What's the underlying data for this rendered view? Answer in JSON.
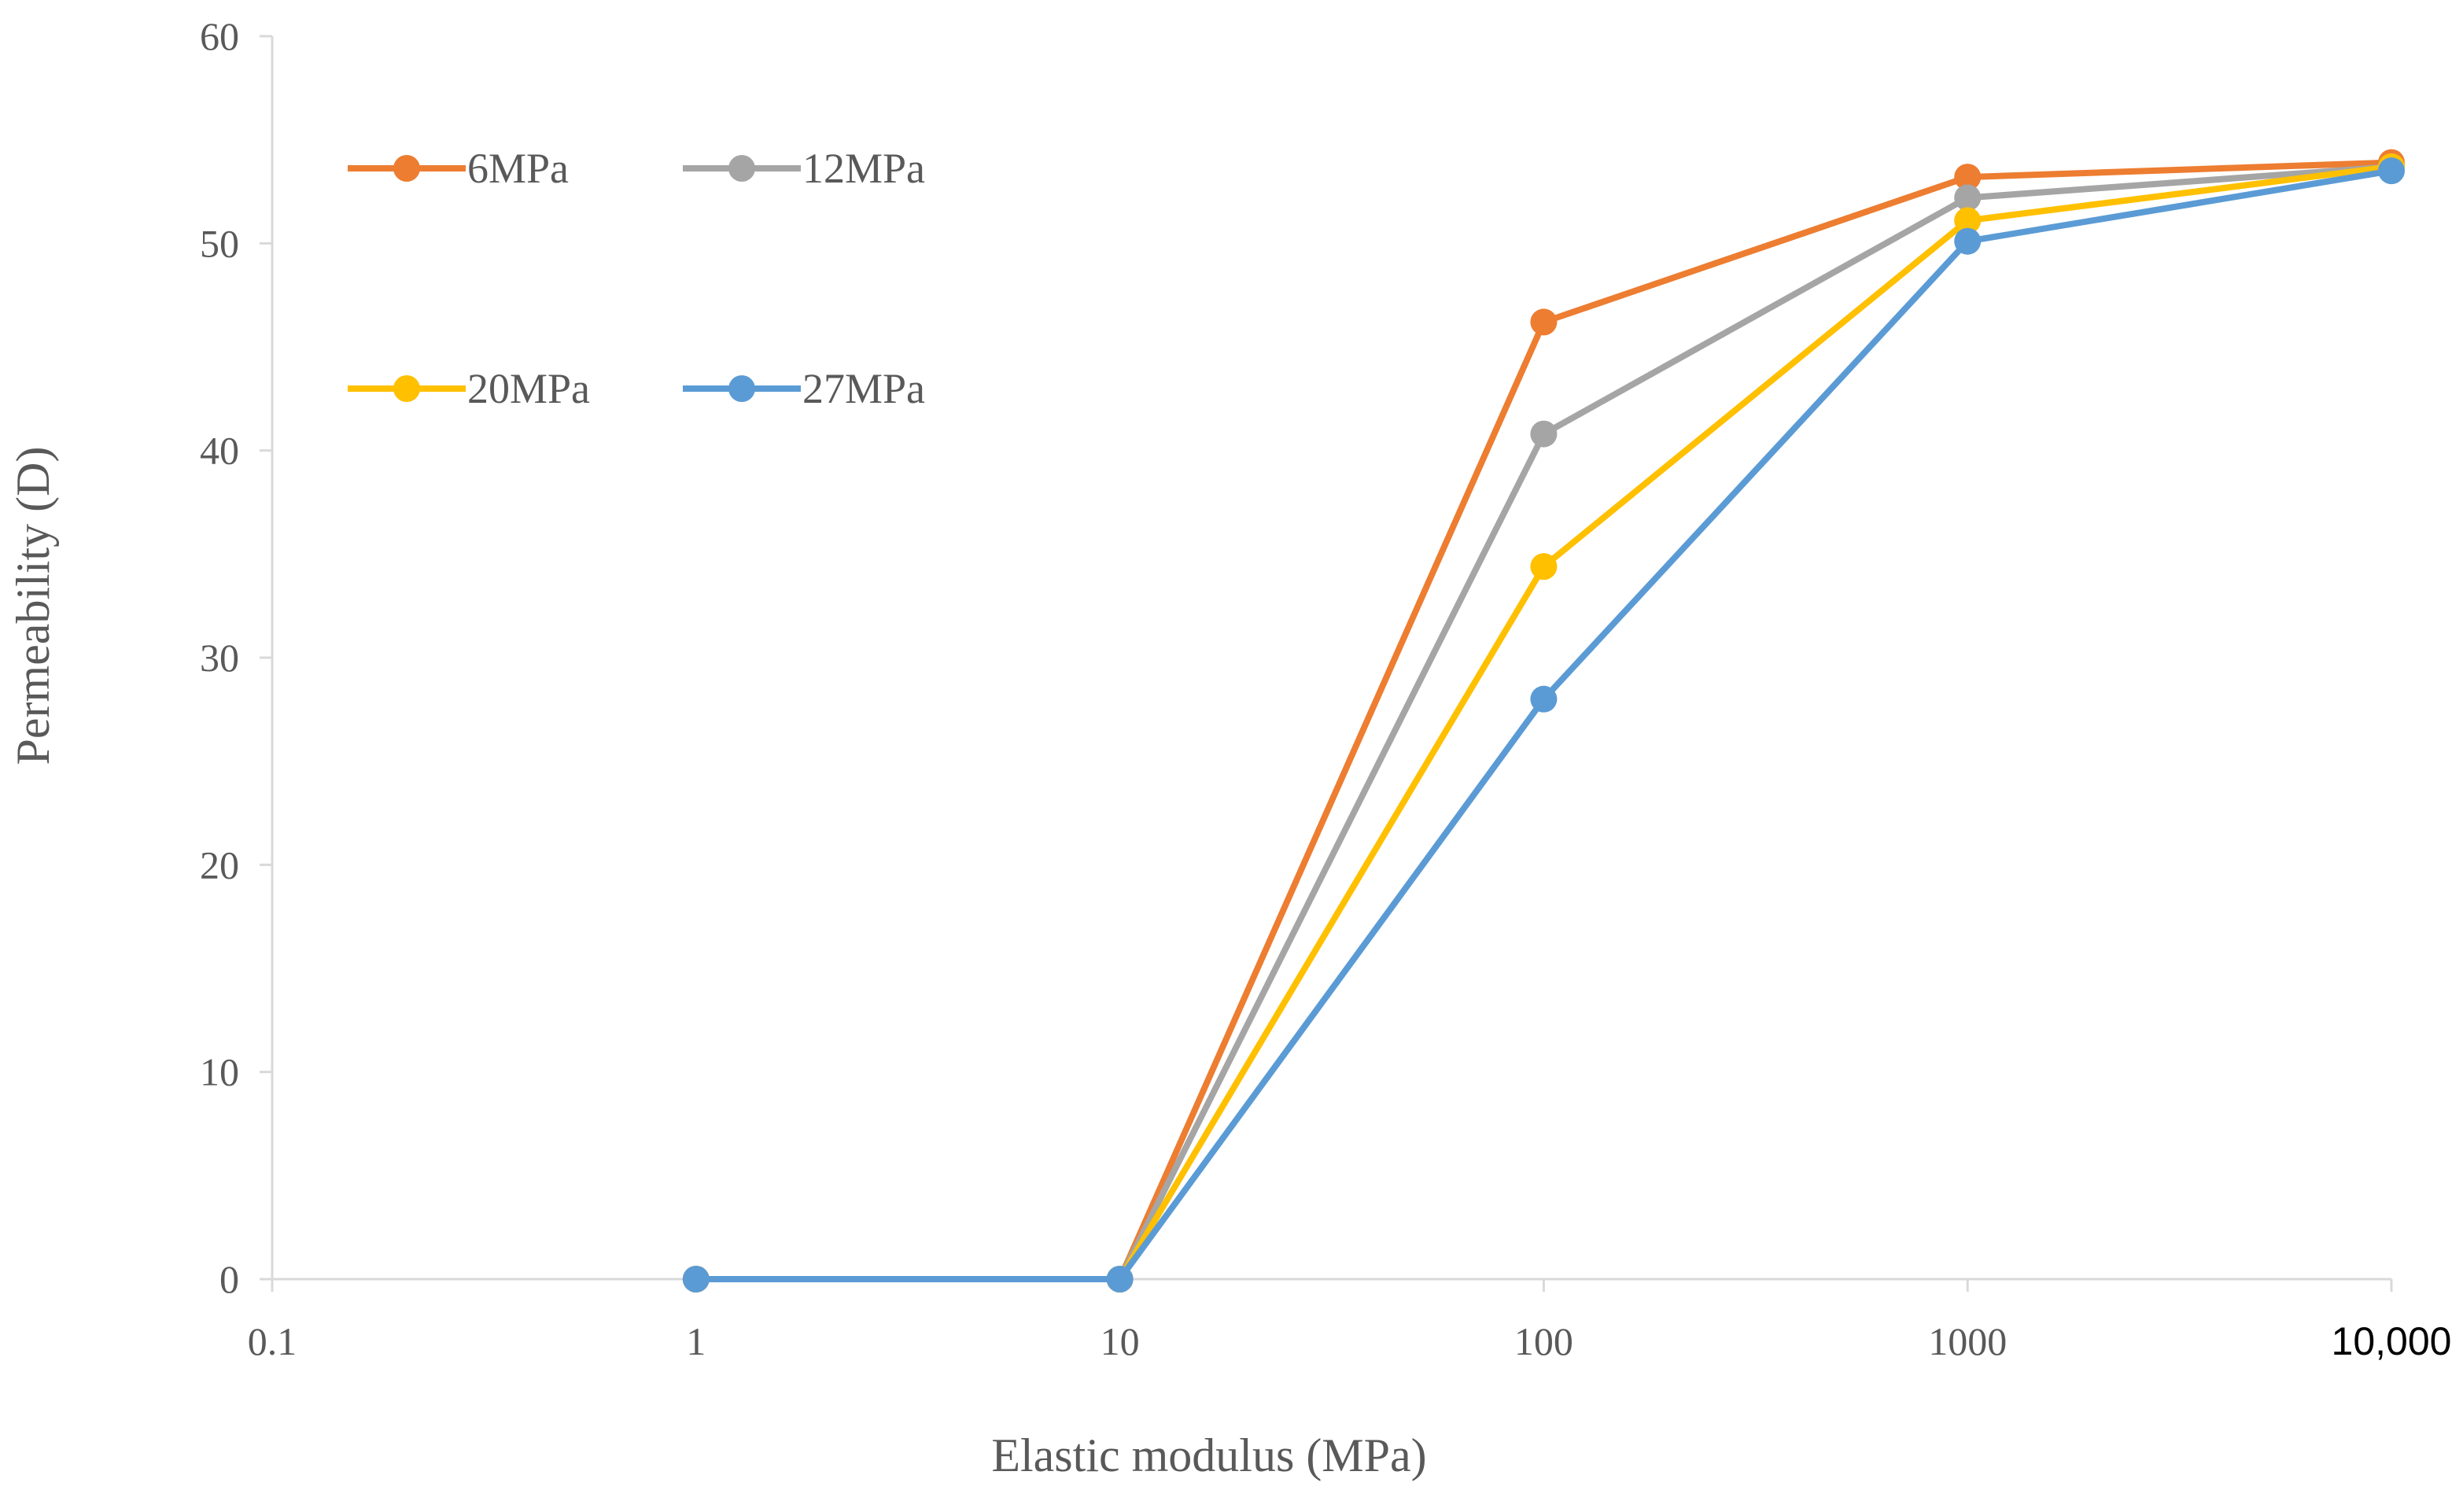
{
  "chart_data": {
    "type": "line",
    "title": "",
    "xlabel": "Elastic modulus (MPa)",
    "ylabel": "Permeability (D)",
    "x_scale": "log",
    "xlim": [
      0.1,
      10000
    ],
    "ylim": [
      0,
      60
    ],
    "x_ticks": [
      0.1,
      1,
      10,
      100,
      1000,
      10000
    ],
    "x_tick_labels": [
      "0.1",
      "1",
      "10",
      "100",
      "1000",
      "10,000"
    ],
    "y_ticks": [
      0,
      10,
      20,
      30,
      40,
      50,
      60
    ],
    "y_tick_labels": [
      "0",
      "10",
      "20",
      "30",
      "40",
      "50",
      "60"
    ],
    "grid": false,
    "legend_position": "top-left",
    "x": [
      1,
      10,
      100,
      1000,
      10000
    ],
    "series": [
      {
        "name": "6MPa",
        "color": "#ED7D31",
        "values": [
          0,
          0,
          46.2,
          53.2,
          53.9
        ]
      },
      {
        "name": "12MPa",
        "color": "#A5A5A5",
        "values": [
          0,
          0,
          40.8,
          52.2,
          53.7
        ]
      },
      {
        "name": "20MPa",
        "color": "#FFC000",
        "values": [
          0,
          0,
          34.4,
          51.1,
          53.7
        ]
      },
      {
        "name": "27MPa",
        "color": "#5B9BD5",
        "values": [
          0,
          0,
          28.0,
          50.1,
          53.5
        ]
      }
    ]
  }
}
